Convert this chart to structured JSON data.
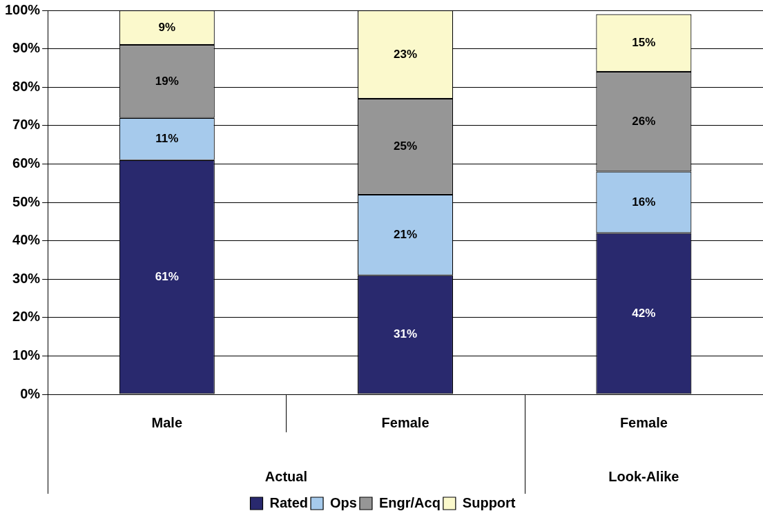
{
  "chart_data": {
    "type": "bar",
    "stacked": true,
    "categories": [
      "Male",
      "Female",
      "Female"
    ],
    "series": [
      {
        "name": "Rated",
        "color": "#29296e",
        "values": [
          61,
          31,
          42
        ],
        "value_labels": [
          "61%",
          "31%",
          "42%"
        ]
      },
      {
        "name": "Ops",
        "color": "#a6caec",
        "values": [
          11,
          21,
          16
        ],
        "value_labels": [
          "11%",
          "21%",
          "16%"
        ]
      },
      {
        "name": "Engr/Acq",
        "color": "#969696",
        "values": [
          19,
          25,
          26
        ],
        "value_labels": [
          "19%",
          "25%",
          "26%"
        ]
      },
      {
        "name": "Support",
        "color": "#fbf9cc",
        "values": [
          9,
          23,
          15
        ],
        "value_labels": [
          "9%",
          "23%",
          "15%"
        ]
      }
    ],
    "ylim": [
      0,
      100
    ],
    "yticks": [
      {
        "value": 0,
        "label": "0%"
      },
      {
        "value": 10,
        "label": "10%"
      },
      {
        "value": 20,
        "label": "20%"
      },
      {
        "value": 30,
        "label": "30%"
      },
      {
        "value": 40,
        "label": "40%"
      },
      {
        "value": 50,
        "label": "50%"
      },
      {
        "value": 60,
        "label": "60%"
      },
      {
        "value": 70,
        "label": "70%"
      },
      {
        "value": 80,
        "label": "80%"
      },
      {
        "value": 90,
        "label": "90%"
      },
      {
        "value": 100,
        "label": "100%"
      }
    ],
    "grid": "y",
    "legend": "bottom",
    "annotations": [
      "Actual",
      "Look-Alike"
    ]
  }
}
